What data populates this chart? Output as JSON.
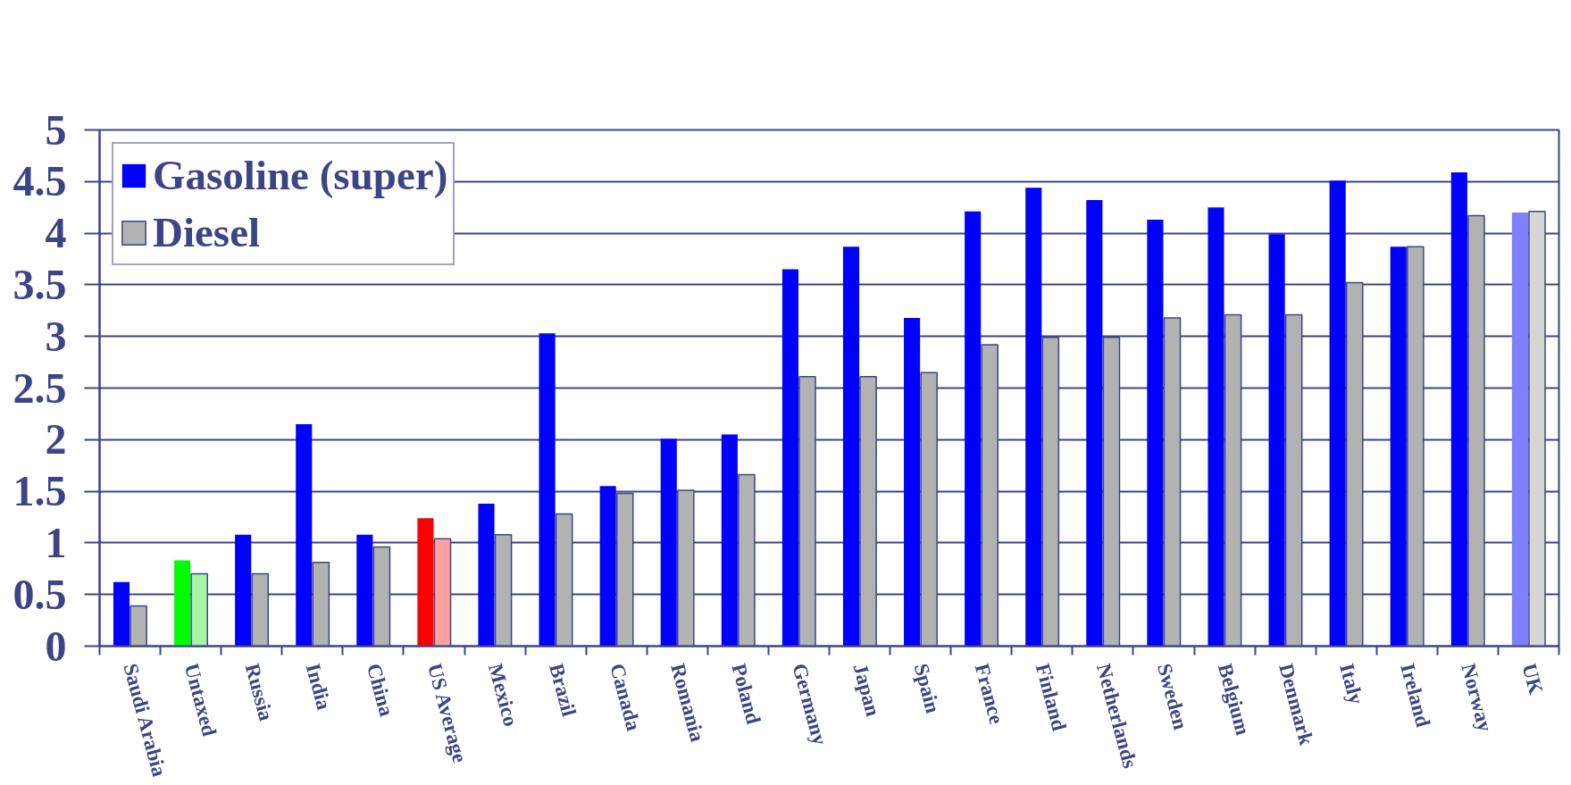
{
  "chart_data": {
    "type": "bar",
    "categories": [
      "Saudi Arabia",
      "Untaxed",
      "Russia",
      "India",
      "China",
      "US Average",
      "Mexico",
      "Brazil",
      "Canada",
      "Romania",
      "Poland",
      "Germany",
      "Japan",
      "Spain",
      "France",
      "Finland",
      "Netherlands",
      "Sweden",
      "Belgium",
      "Denmark",
      "Italy",
      "Ireland",
      "Norway",
      "UK"
    ],
    "series": [
      {
        "name": "Gasoline (super)",
        "color": "#0000ff",
        "colors": [
          null,
          "#00ff00",
          null,
          null,
          null,
          "#ff0000",
          null,
          null,
          null,
          null,
          null,
          null,
          null,
          null,
          null,
          null,
          null,
          null,
          null,
          null,
          null,
          null,
          null,
          "#8080ff"
        ],
        "values": [
          0.62,
          0.83,
          1.08,
          2.15,
          1.08,
          1.24,
          1.38,
          3.03,
          1.55,
          2.01,
          2.05,
          3.65,
          3.87,
          3.18,
          4.21,
          4.44,
          4.32,
          4.13,
          4.25,
          3.99,
          4.51,
          3.87,
          4.59,
          4.2
        ]
      },
      {
        "name": "Diesel",
        "color": "#b2b2b2",
        "colors": [
          null,
          "#a6f5a6",
          null,
          null,
          null,
          "#ffa0a0",
          null,
          null,
          null,
          null,
          null,
          null,
          null,
          null,
          null,
          null,
          null,
          null,
          null,
          null,
          null,
          null,
          null,
          "#d6d6d6"
        ],
        "values": [
          0.39,
          0.7,
          0.7,
          0.81,
          0.96,
          1.04,
          1.08,
          1.28,
          1.48,
          1.51,
          1.66,
          2.61,
          2.61,
          2.65,
          2.92,
          2.99,
          2.99,
          3.18,
          3.21,
          3.21,
          3.52,
          3.87,
          4.17,
          4.21
        ]
      }
    ],
    "ylim": [
      0,
      5
    ],
    "yticks": [
      0,
      0.5,
      1,
      1.5,
      2,
      2.5,
      3,
      3.5,
      4,
      4.5,
      5
    ],
    "grid": "y",
    "legend": "top left"
  }
}
